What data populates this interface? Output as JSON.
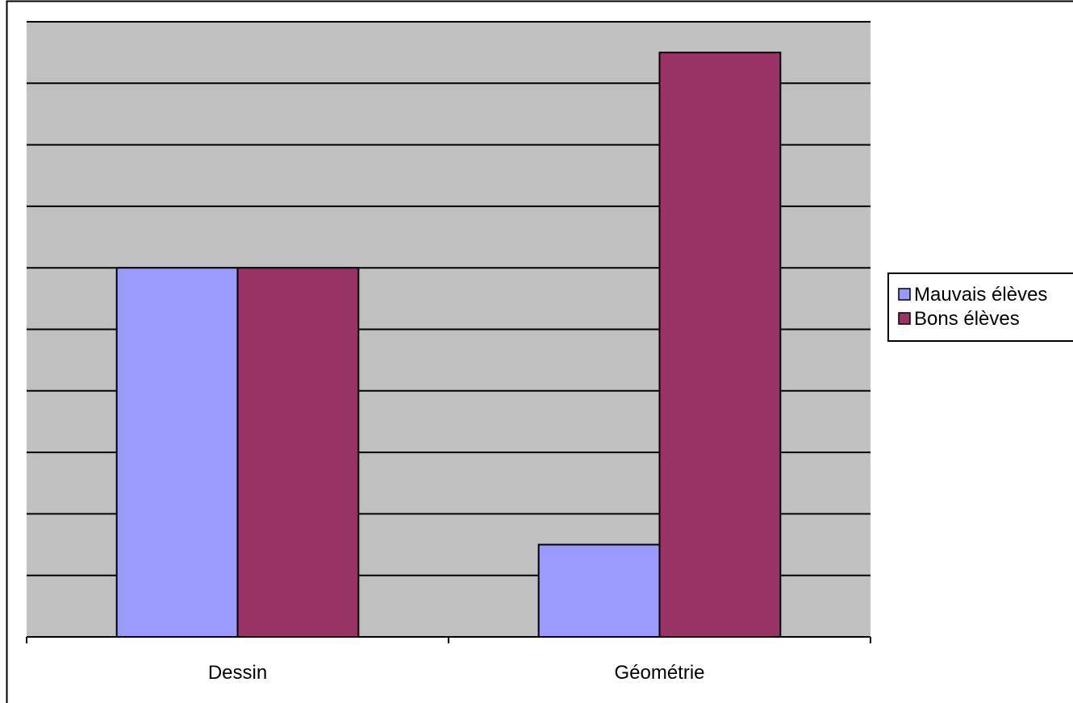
{
  "chart_data": {
    "type": "bar",
    "title": "",
    "xlabel": "",
    "ylabel": "",
    "categories": [
      "Dessin",
      "Géométrie"
    ],
    "series": [
      {
        "name": "Mauvais élèves",
        "values": [
          6,
          1.5
        ]
      },
      {
        "name": "Bons élèves",
        "values": [
          6,
          9.5
        ]
      }
    ],
    "ylim": [
      0,
      10
    ],
    "grid": true,
    "legend": "right"
  },
  "colors": {
    "plot_background": "#C0C0C0",
    "series": [
      "#9999FF",
      "#993366"
    ],
    "gridline": "#000000",
    "axis": "#000000"
  }
}
